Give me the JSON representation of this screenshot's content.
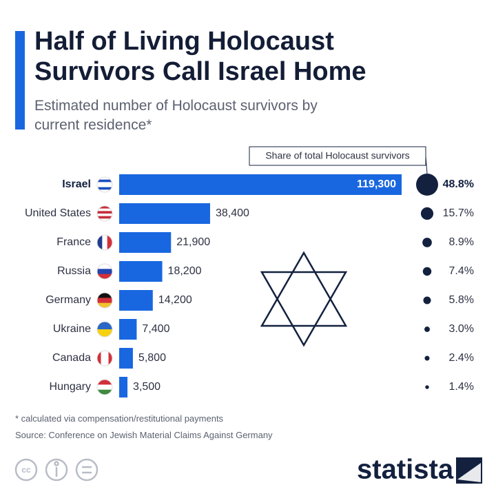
{
  "chart_data": {
    "type": "bar",
    "orientation": "horizontal",
    "title": "Half of Living Holocaust Survivors Call Israel Home",
    "subtitle": "Estimated number of Holocaust survivors by current residence*",
    "categories": [
      "Israel",
      "United States",
      "France",
      "Russia",
      "Germany",
      "Ukraine",
      "Canada",
      "Hungary"
    ],
    "values": [
      119300,
      38400,
      21900,
      18200,
      14200,
      7400,
      5800,
      3500
    ],
    "value_labels": [
      "119,300",
      "38,400",
      "21,900",
      "18,200",
      "14,200",
      "7,400",
      "5,800",
      "3,500"
    ],
    "color": "#1967e0",
    "share": {
      "name": "Share of total Holocaust survivors",
      "color": "#13213f",
      "values": [
        48.8,
        15.7,
        8.9,
        7.4,
        5.8,
        3.0,
        2.4,
        1.4
      ],
      "value_labels": [
        "48.8%",
        "15.7%",
        "8.9%",
        "7.4%",
        "5.8%",
        "3.0%",
        "2.4%",
        "1.4%"
      ]
    }
  },
  "notes": {
    "footnote": "* calculated via compensation/restitutional payments",
    "source": "Source: Conference on Jewish Material Claims Against Germany",
    "brand": "statista"
  }
}
